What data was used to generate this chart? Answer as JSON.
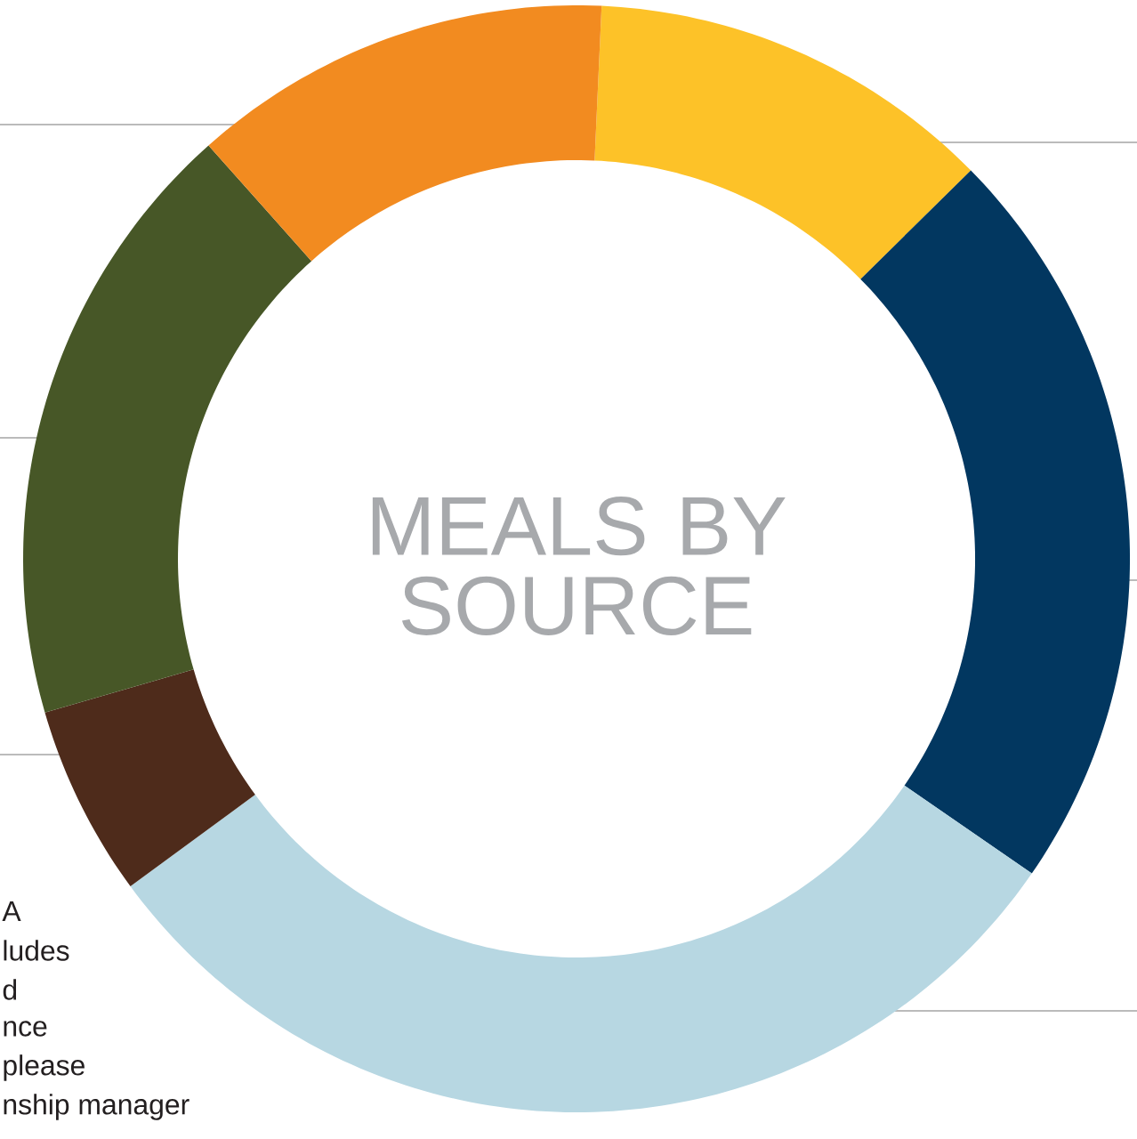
{
  "chart_data": {
    "type": "donut",
    "title": "MEALS BY SOURCE",
    "categories": [
      null,
      null,
      null,
      null,
      null,
      null
    ],
    "values": [
      11.9,
      22.0,
      30.3,
      5.6,
      17.9,
      12.3
    ],
    "colors": [
      "#fdc228",
      "#023760",
      "#b7d7e2",
      "#4e2b1b",
      "#475727",
      "#f28b20"
    ],
    "annotations": [
      "A",
      "ludes",
      "d",
      "nce",
      "please",
      "nship manager"
    ]
  }
}
